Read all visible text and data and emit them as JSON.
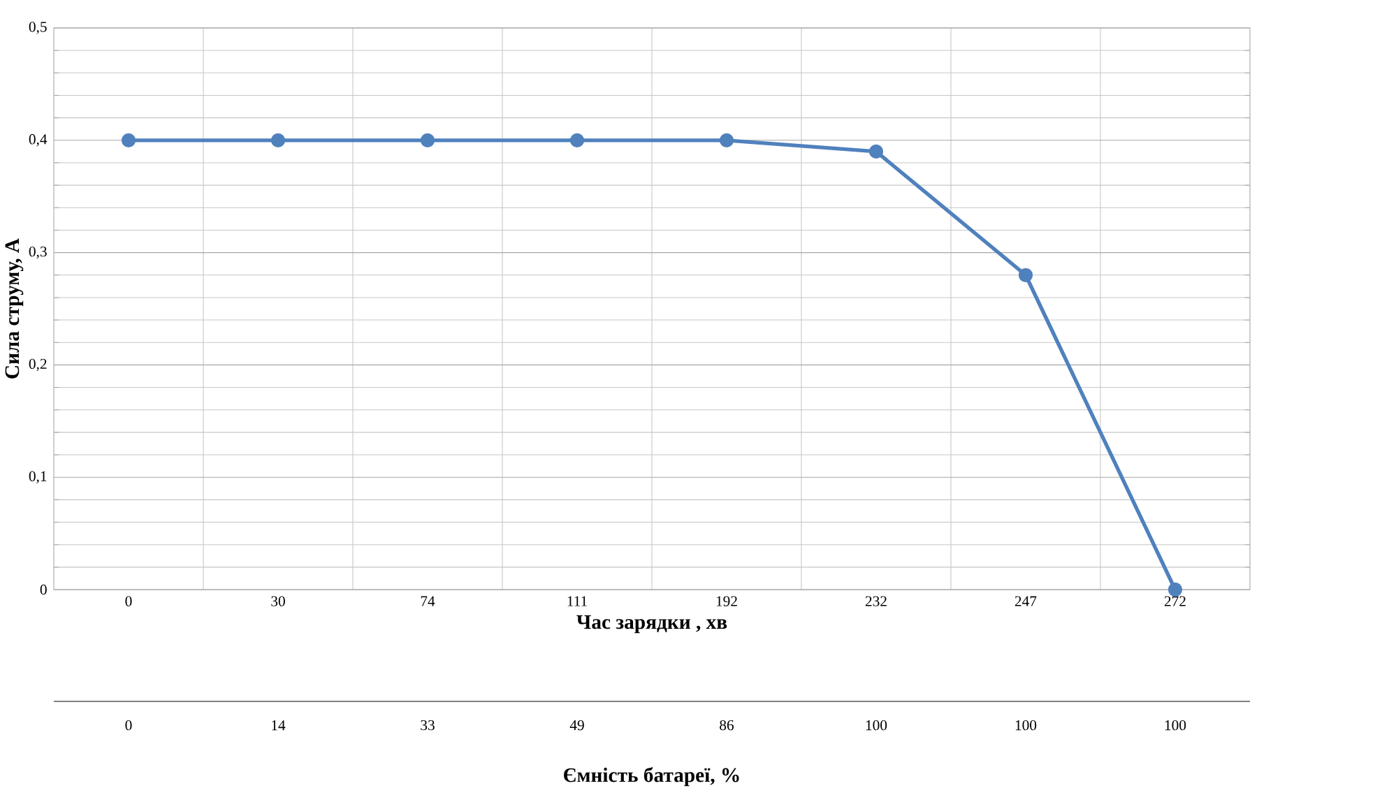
{
  "chart_data": {
    "type": "line",
    "xlabel": "Час зарядки , хв",
    "ylabel": "Сила струму, А",
    "x2label": "Ємність батареї, %",
    "categories": [
      "0",
      "30",
      "74",
      "111",
      "192",
      "232",
      "247",
      "272"
    ],
    "series": [
      {
        "color": "#4f81bd",
        "values": [
          0.4,
          0.4,
          0.4,
          0.4,
          0.4,
          0.39,
          0.28,
          0
        ]
      }
    ],
    "ylim": [
      0,
      0.5
    ],
    "yticks": [
      0,
      {
        "value": 0.1,
        "label": "0,1"
      },
      {
        "value": 0.2,
        "label": "0,2"
      },
      {
        "value": 0.3,
        "label": "0,3"
      },
      {
        "value": 0.4,
        "label": "0,4"
      },
      {
        "value": 0.5,
        "label": "0,5"
      }
    ],
    "annotations": [
      "0",
      "14",
      "33",
      "49",
      "86",
      "100",
      "100",
      "100"
    ],
    "grid": true,
    "marker": "circle",
    "line_style": "solid",
    "legend": false
  }
}
